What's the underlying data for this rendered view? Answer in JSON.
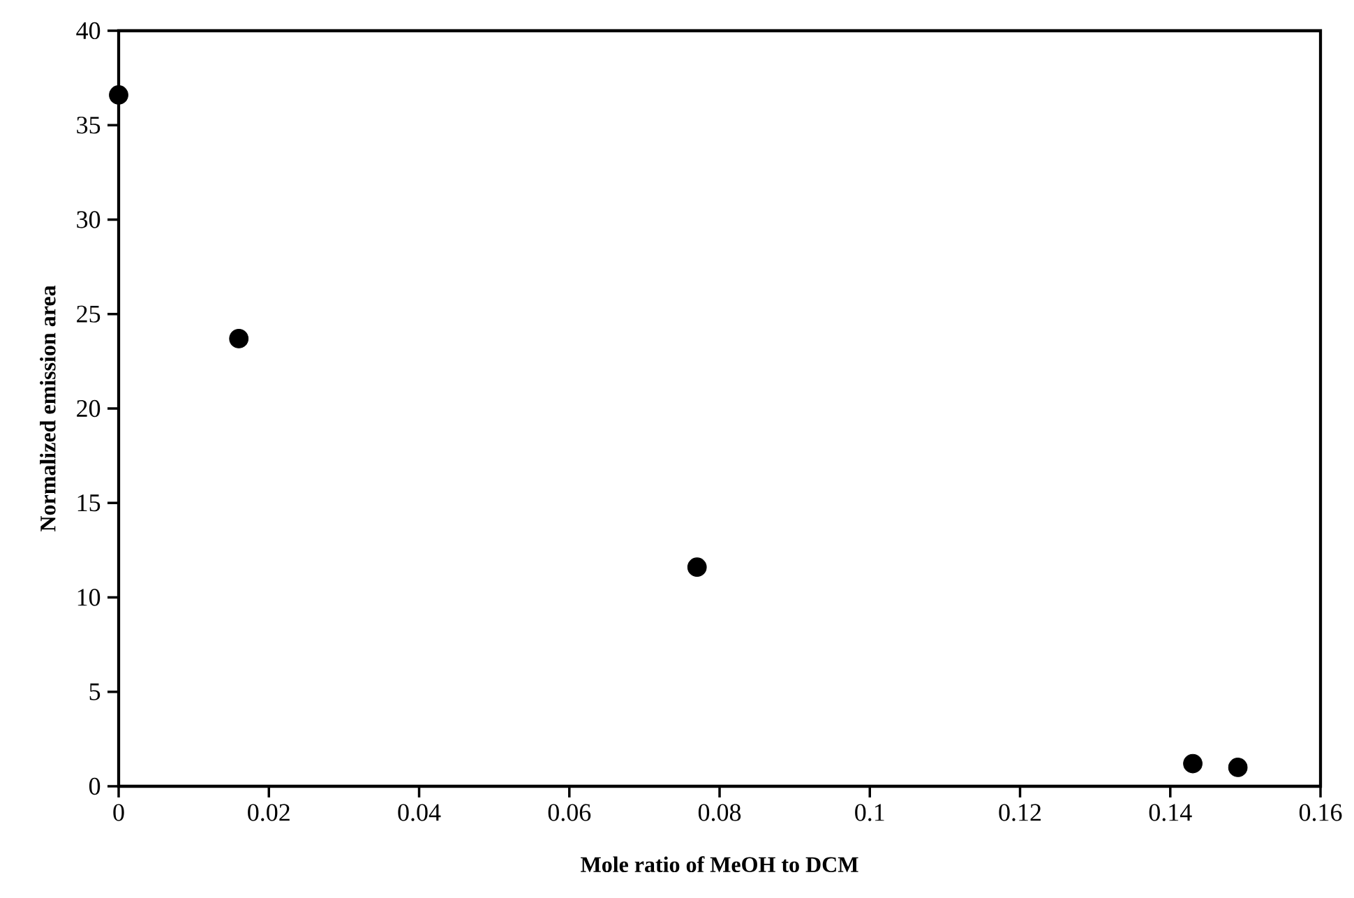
{
  "chart_data": {
    "type": "scatter",
    "xlabel": "Mole ratio of MeOH to DCM",
    "ylabel": "Normalized emission area",
    "x": [
      0,
      0.016,
      0.077,
      0.143,
      0.149
    ],
    "series": [
      {
        "color": "#000000",
        "values": [
          36.6,
          23.7,
          11.6,
          1.2,
          1.0
        ]
      }
    ],
    "xlim": [
      0,
      0.16
    ],
    "xticks": [
      0,
      0.02,
      0.04,
      0.06,
      0.08,
      0.1,
      0.12,
      0.14,
      0.16
    ],
    "ylim": [
      0,
      40
    ],
    "yticks": [
      0,
      5,
      10,
      15,
      20,
      25,
      30,
      35,
      40
    ],
    "grid": false
  }
}
